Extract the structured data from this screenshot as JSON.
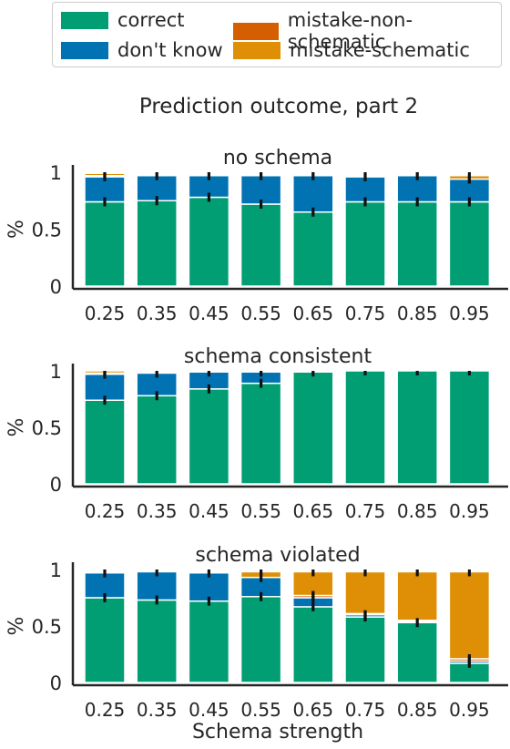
{
  "figure": {
    "suptitle": "Prediction outcome, part 2",
    "xlabel": "Schema strength",
    "ylabel": "%"
  },
  "legend": [
    {
      "label": "correct",
      "color": "#029e73"
    },
    {
      "label": "don't know",
      "color": "#0173b2"
    },
    {
      "label": "mistake-non-schematic",
      "color": "#d55e00"
    },
    {
      "label": "mistake-schematic",
      "color": "#de8f05"
    }
  ],
  "chart_data": [
    {
      "type": "bar",
      "stacked": true,
      "title": "no schema",
      "xlabel": "",
      "ylabel": "%",
      "categories": [
        "0.25",
        "0.35",
        "0.45",
        "0.55",
        "0.65",
        "0.75",
        "0.85",
        "0.95"
      ],
      "ylim": [
        0,
        1
      ],
      "yticks": [
        "0",
        "0.5",
        "1"
      ],
      "series": [
        {
          "name": "correct",
          "values": [
            0.74,
            0.75,
            0.78,
            0.72,
            0.65,
            0.74,
            0.74,
            0.74
          ]
        },
        {
          "name": "don't know",
          "values": [
            0.22,
            0.22,
            0.19,
            0.25,
            0.32,
            0.22,
            0.23,
            0.2
          ]
        },
        {
          "name": "mistake-non-schematic",
          "values": [
            0.01,
            0.0,
            0.0,
            0.0,
            0.0,
            0.01,
            0.0,
            0.0
          ]
        },
        {
          "name": "mistake-schematic",
          "values": [
            0.02,
            0.0,
            0.0,
            0.0,
            0.0,
            0.01,
            0.0,
            0.03
          ]
        }
      ],
      "error_bar_tops": [
        0.97,
        0.97,
        0.97,
        0.97,
        0.97,
        0.97,
        0.97,
        0.97
      ]
    },
    {
      "type": "bar",
      "stacked": true,
      "title": "schema consistent",
      "xlabel": "",
      "ylabel": "%",
      "categories": [
        "0.25",
        "0.35",
        "0.45",
        "0.55",
        "0.65",
        "0.75",
        "0.85",
        "0.95"
      ],
      "ylim": [
        0,
        1
      ],
      "yticks": [
        "0",
        "0.5",
        "1"
      ],
      "series": [
        {
          "name": "correct",
          "values": [
            0.74,
            0.78,
            0.84,
            0.89,
            0.99,
            1.0,
            1.0,
            1.0
          ]
        },
        {
          "name": "don't know",
          "values": [
            0.23,
            0.2,
            0.15,
            0.1,
            0.01,
            0.0,
            0.0,
            0.0
          ]
        },
        {
          "name": "mistake-non-schematic",
          "values": [
            0.01,
            0.0,
            0.0,
            0.0,
            0.0,
            0.0,
            0.0,
            0.0
          ]
        },
        {
          "name": "mistake-schematic",
          "values": [
            0.02,
            0.0,
            0.0,
            0.0,
            0.0,
            0.0,
            0.0,
            0.0
          ]
        }
      ]
    },
    {
      "type": "bar",
      "stacked": true,
      "title": "schema violated",
      "xlabel": "Schema strength",
      "ylabel": "%",
      "categories": [
        "0.25",
        "0.35",
        "0.45",
        "0.55",
        "0.65",
        "0.75",
        "0.85",
        "0.95"
      ],
      "ylim": [
        0,
        1
      ],
      "yticks": [
        "0",
        "0.5",
        "1"
      ],
      "series": [
        {
          "name": "correct",
          "values": [
            0.75,
            0.73,
            0.72,
            0.76,
            0.67,
            0.58,
            0.53,
            0.17
          ]
        },
        {
          "name": "don't know",
          "values": [
            0.22,
            0.25,
            0.25,
            0.17,
            0.08,
            0.02,
            0.01,
            0.02
          ]
        },
        {
          "name": "mistake-non-schematic",
          "values": [
            0.0,
            0.0,
            0.0,
            0.0,
            0.02,
            0.01,
            0.01,
            0.02
          ]
        },
        {
          "name": "mistake-schematic",
          "values": [
            0.0,
            0.0,
            0.0,
            0.05,
            0.21,
            0.37,
            0.43,
            0.77
          ]
        }
      ]
    }
  ]
}
